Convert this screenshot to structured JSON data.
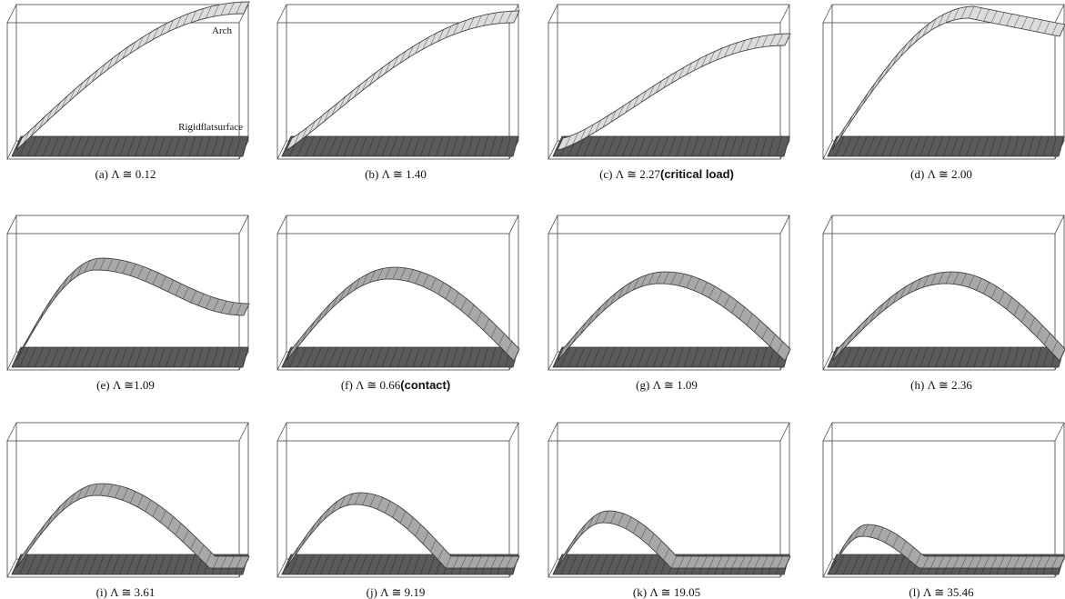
{
  "labels": {
    "arch": "Arch",
    "surface": "Rigidflatsurface"
  },
  "panels": [
    {
      "caption": "(a) Λ ≅ 0.12"
    },
    {
      "caption": "(b) Λ ≅ 1.40"
    },
    {
      "caption": "(c) Λ ≅ 2.27",
      "note": "(critical load)"
    },
    {
      "caption": "(d) Λ ≅ 2.00"
    },
    {
      "caption": "(e) Λ ≅1.09"
    },
    {
      "caption": "(f) Λ ≅ 0.66",
      "note": "(contact)"
    },
    {
      "caption": "(g) Λ ≅ 1.09"
    },
    {
      "caption": "(h) Λ ≅ 2.36"
    },
    {
      "caption": "(i) Λ ≅ 3.61"
    },
    {
      "caption": "(j) Λ ≅ 9.19"
    },
    {
      "caption": "(k) Λ ≅ 19.05"
    },
    {
      "caption": "(l) Λ ≅ 35.46"
    }
  ]
}
